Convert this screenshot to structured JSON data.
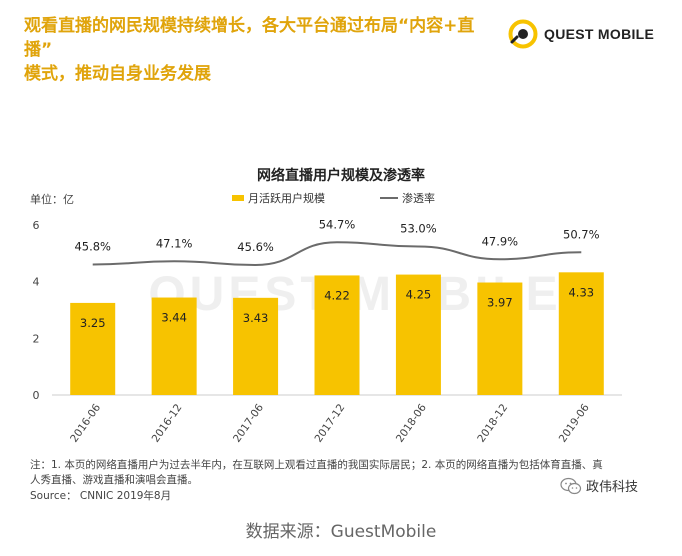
{
  "header": {
    "headline_line1": "观看直播的网民规模持续增长，各大平台通过布局“内容+直播”",
    "headline_line2": "模式，推动自身业务发展",
    "brand_name": "QUEST MOBILE"
  },
  "chart_data": {
    "type": "bar",
    "title": "网络直播用户规模及渗透率",
    "unit_label": "单位：亿",
    "categories": [
      "2016-06",
      "2016-12",
      "2017-06",
      "2017-12",
      "2018-06",
      "2018-12",
      "2019-06"
    ],
    "series": [
      {
        "name": "月活跃用户规模",
        "type": "bar",
        "values": [
          3.25,
          3.44,
          3.43,
          4.22,
          4.25,
          3.97,
          4.33
        ],
        "labels": [
          "3.25",
          "3.44",
          "3.43",
          "4.22",
          "4.25",
          "3.97",
          "4.33"
        ],
        "color": "#f7c300"
      },
      {
        "name": "渗透率",
        "type": "line",
        "values": [
          45.8,
          47.1,
          45.6,
          54.7,
          53.0,
          47.9,
          50.7
        ],
        "labels": [
          "45.8%",
          "47.1%",
          "45.6%",
          "54.7%",
          "53.0%",
          "47.9%",
          "50.7%"
        ],
        "color": "#6b6b6b"
      }
    ],
    "ylim": [
      0,
      6
    ],
    "yticks": [
      "0",
      "2",
      "4",
      "6"
    ],
    "grid": false,
    "legend": "top"
  },
  "notes": {
    "line1": "注：1. 本页的网络直播用户为过去半年内，在互联网上观看过直播的我国实际居民；2. 本页的网络直播为包括体育直播、真",
    "line2": "人秀直播、游戏直播和演唱会直播。",
    "source": "Source： CNNIC 2019年8月"
  },
  "watermark_account": "政伟科技",
  "footer": "数据来源：GuestMobile",
  "colors": {
    "accent": "#e0a40b",
    "bar": "#f7c300",
    "line": "#6b6b6b"
  }
}
